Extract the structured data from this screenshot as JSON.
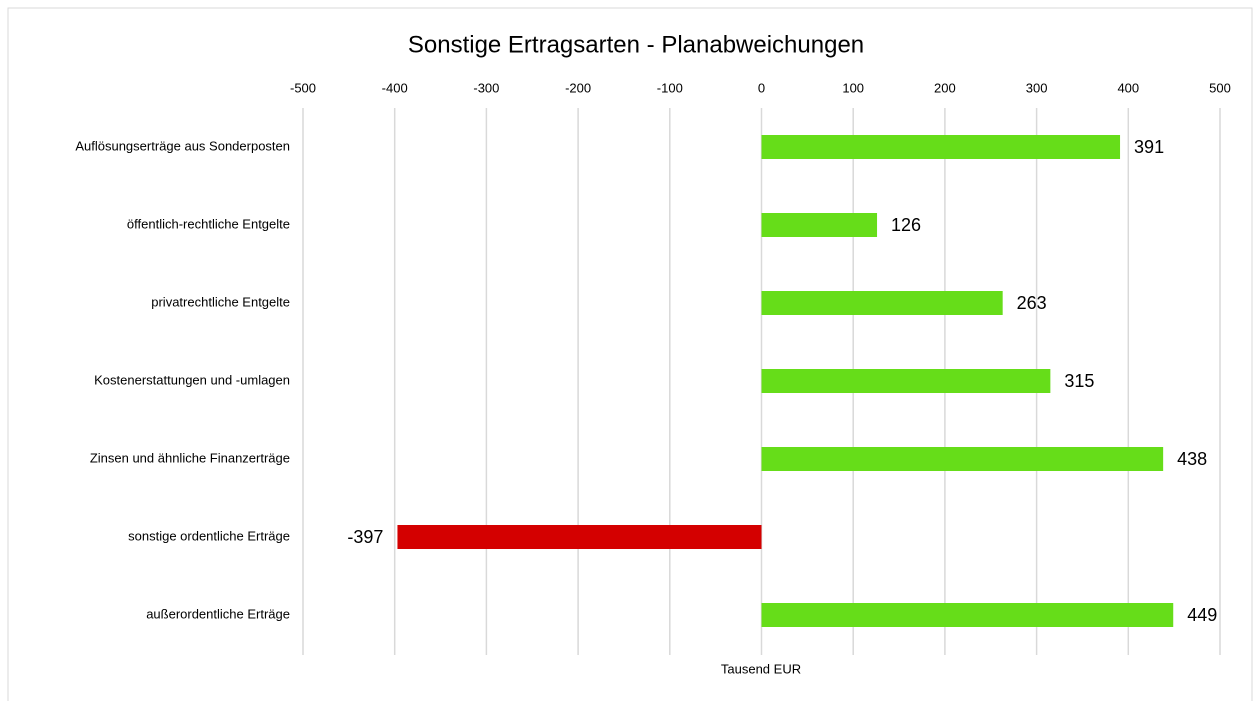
{
  "chart_data": {
    "type": "bar",
    "orientation": "horizontal",
    "title": "Sonstige Ertragsarten - Planabweichungen",
    "x_label": "Tausend EUR",
    "categories": [
      "Auflösungserträge aus Sonderposten",
      "öffentlich-rechtliche Entgelte",
      "privatrechtliche Entgelte",
      "Kostenerstattungen und -umlagen",
      "Zinsen und ähnliche Finanzerträge",
      "sonstige ordentliche Erträge",
      "außerordentliche Erträge"
    ],
    "values": [
      391,
      126,
      263,
      315,
      438,
      -397,
      449
    ],
    "colors": [
      "#66dd19",
      "#66dd19",
      "#66dd19",
      "#66dd19",
      "#66dd19",
      "#d40000",
      "#66dd19"
    ],
    "xlim": [
      -500,
      500
    ],
    "xticks": [
      -500,
      -400,
      -300,
      -200,
      -100,
      0,
      100,
      200,
      300,
      400,
      500
    ],
    "grid": true
  }
}
